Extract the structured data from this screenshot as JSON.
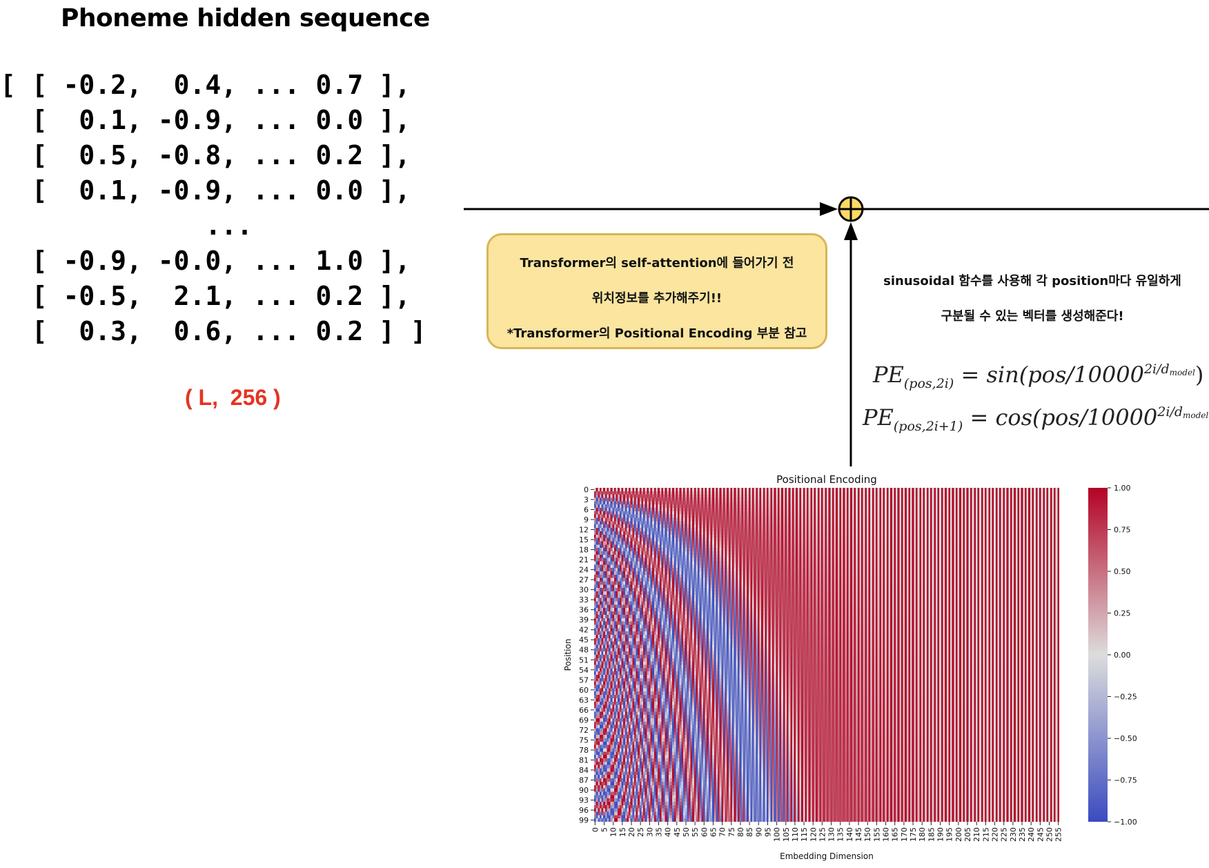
{
  "title": "Phoneme hidden sequence",
  "matrix_rows": [
    "[ [ -0.2,  0.4, ... 0.7 ],",
    "  [  0.1, -0.9, ... 0.0 ],",
    "  [  0.5, -0.8, ... 0.2 ],",
    "  [  0.1, -0.9, ... 0.0 ],",
    "             ...",
    "  [ -0.9, -0.0, ... 1.0 ],",
    "  [ -0.5,  2.1, ... 0.2 ],",
    "  [  0.3,  0.6, ... 0.2 ] ]"
  ],
  "shape_label": "( L,  256 )",
  "note": {
    "line1": "Transformer의 self-attention에 들어가기 전",
    "line2": "위치정보를 추가해주기!!",
    "line3": "*Transformer의 Positional Encoding 부분 참고"
  },
  "description": {
    "line1": "sinusoidal 함수를 사용해 각 position마다 유일하게",
    "line2": "구분될 수 있는 벡터를 생성해준다!"
  },
  "formula1": {
    "lhs": "PE",
    "sub": "(pos,2i)",
    "eq": " = sin(pos/10000",
    "exp": "2i/d",
    "exp_sub": "model",
    "close": ")"
  },
  "formula2": {
    "lhs": "PE",
    "sub": "(pos,2i+1)",
    "eq": " = cos(pos/10000",
    "exp": "2i/d",
    "exp_sub": "model",
    "close": ")"
  },
  "colors": {
    "accent_red": "#e53323",
    "note_fill": "#fbe59f",
    "note_border": "#d6b656",
    "plus_fill": "#ffd966",
    "cmap_low": "#3b4cc0",
    "cmap_mid": "#dddddd",
    "cmap_high": "#b40426"
  },
  "icons": {
    "sum": "plus-circle-icon"
  },
  "chart_data": {
    "type": "heatmap",
    "title": "Positional Encoding",
    "xlabel": "Embedding Dimension",
    "ylabel": "Position",
    "n_positions": 100,
    "d_model": 256,
    "formula": "PE(pos,2i)=sin(pos/10000^(2i/d_model)); PE(pos,2i+1)=cos(pos/10000^(2i/d_model))",
    "x_ticks": [
      0,
      5,
      10,
      15,
      20,
      25,
      30,
      35,
      40,
      45,
      50,
      55,
      60,
      65,
      70,
      75,
      80,
      85,
      90,
      95,
      100,
      105,
      110,
      115,
      120,
      125,
      130,
      135,
      140,
      145,
      150,
      155,
      160,
      165,
      170,
      175,
      180,
      185,
      190,
      195,
      200,
      205,
      210,
      215,
      220,
      225,
      230,
      235,
      240,
      245,
      250,
      255
    ],
    "y_ticks": [
      0,
      3,
      6,
      9,
      12,
      15,
      18,
      21,
      24,
      27,
      30,
      33,
      36,
      39,
      42,
      45,
      48,
      51,
      54,
      57,
      60,
      63,
      66,
      69,
      72,
      75,
      78,
      81,
      84,
      87,
      90,
      93,
      96,
      99
    ],
    "colorbar": {
      "min": -1.0,
      "max": 1.0,
      "ticks": [
        "1.00",
        "0.75",
        "0.50",
        "0.25",
        "0.00",
        "−0.25",
        "−0.50",
        "−0.75",
        "−1.00"
      ]
    },
    "colormap": "coolwarm"
  }
}
